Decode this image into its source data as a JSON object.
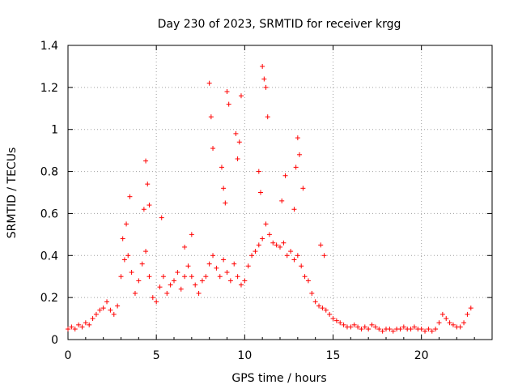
{
  "chart_data": {
    "type": "scatter",
    "title": "Day 230 of 2023, SRMTID for receiver krgg",
    "xlabel": "GPS time / hours",
    "ylabel": "SRMTID / TECUs",
    "xlim": [
      0,
      24
    ],
    "ylim": [
      0,
      1.4
    ],
    "x_ticks": [
      0,
      5,
      10,
      15,
      20
    ],
    "x_tick_labels": [
      "0",
      "5",
      "10",
      "15",
      "20"
    ],
    "y_ticks": [
      0,
      0.2,
      0.4,
      0.6,
      0.8,
      1.0,
      1.2,
      1.4
    ],
    "y_tick_labels": [
      "0",
      "0.2",
      "0.4",
      "0.6",
      "0.8",
      "1",
      "1.2",
      "1.4"
    ],
    "grid": true,
    "marker": "+",
    "series": [
      {
        "name": "SRMTID",
        "color": "#ff0000",
        "x": [
          0.0,
          0.2,
          0.4,
          0.6,
          0.8,
          1.0,
          1.2,
          1.4,
          1.6,
          1.8,
          2.0,
          2.2,
          2.4,
          2.6,
          2.8,
          3.0,
          3.2,
          3.4,
          3.6,
          3.8,
          4.0,
          4.2,
          4.4,
          4.6,
          4.8,
          5.0,
          5.2,
          5.4,
          5.6,
          5.8,
          6.0,
          6.2,
          6.4,
          6.6,
          6.8,
          7.0,
          7.2,
          7.4,
          7.6,
          7.8,
          8.0,
          8.2,
          8.4,
          8.6,
          8.8,
          9.0,
          9.2,
          9.4,
          9.6,
          9.8,
          10.0,
          10.2,
          10.4,
          10.6,
          10.8,
          11.0,
          11.2,
          11.4,
          11.6,
          11.8,
          12.0,
          12.2,
          12.4,
          12.6,
          12.8,
          13.0,
          13.2,
          13.4,
          13.6,
          13.8,
          14.0,
          14.2,
          14.4,
          14.6,
          14.8,
          15.0,
          15.2,
          15.4,
          15.6,
          15.8,
          16.0,
          16.2,
          16.4,
          16.6,
          16.8,
          17.0,
          17.2,
          17.4,
          17.6,
          17.8,
          18.0,
          18.2,
          18.4,
          18.6,
          18.8,
          19.0,
          19.2,
          19.4,
          19.6,
          19.8,
          20.0,
          20.2,
          20.4,
          20.6,
          20.8,
          21.0,
          21.2,
          21.4,
          21.6,
          21.8,
          22.0,
          22.2,
          22.4,
          22.6,
          22.8,
          3.1,
          3.3,
          3.5,
          4.3,
          4.4,
          4.5,
          4.6,
          5.3,
          6.6,
          7.0,
          8.0,
          8.1,
          8.2,
          8.7,
          8.8,
          8.9,
          9.0,
          9.1,
          9.5,
          9.6,
          9.7,
          9.8,
          10.8,
          10.9,
          11.0,
          11.1,
          11.2,
          11.3,
          12.1,
          12.3,
          12.8,
          12.9,
          13.0,
          13.1,
          13.3,
          14.3,
          14.5
        ],
        "y": [
          0.05,
          0.06,
          0.05,
          0.07,
          0.06,
          0.08,
          0.07,
          0.1,
          0.12,
          0.14,
          0.15,
          0.18,
          0.14,
          0.12,
          0.16,
          0.3,
          0.38,
          0.4,
          0.32,
          0.22,
          0.28,
          0.36,
          0.42,
          0.3,
          0.2,
          0.18,
          0.25,
          0.3,
          0.22,
          0.26,
          0.28,
          0.32,
          0.24,
          0.3,
          0.35,
          0.3,
          0.26,
          0.22,
          0.28,
          0.3,
          0.36,
          0.4,
          0.34,
          0.3,
          0.38,
          0.32,
          0.28,
          0.36,
          0.3,
          0.26,
          0.28,
          0.35,
          0.4,
          0.42,
          0.45,
          0.48,
          0.55,
          0.5,
          0.46,
          0.45,
          0.44,
          0.46,
          0.4,
          0.42,
          0.38,
          0.4,
          0.35,
          0.3,
          0.28,
          0.22,
          0.18,
          0.16,
          0.15,
          0.14,
          0.12,
          0.1,
          0.09,
          0.08,
          0.07,
          0.06,
          0.06,
          0.07,
          0.06,
          0.05,
          0.06,
          0.05,
          0.07,
          0.06,
          0.05,
          0.04,
          0.05,
          0.05,
          0.04,
          0.05,
          0.05,
          0.06,
          0.05,
          0.05,
          0.06,
          0.05,
          0.05,
          0.04,
          0.05,
          0.04,
          0.05,
          0.08,
          0.12,
          0.1,
          0.08,
          0.07,
          0.06,
          0.06,
          0.08,
          0.12,
          0.15,
          0.48,
          0.55,
          0.68,
          0.62,
          0.85,
          0.74,
          0.64,
          0.58,
          0.44,
          0.5,
          1.22,
          1.06,
          0.91,
          0.82,
          0.72,
          0.65,
          1.18,
          1.12,
          0.98,
          0.86,
          0.94,
          1.16,
          0.8,
          0.7,
          1.3,
          1.24,
          1.2,
          1.06,
          0.66,
          0.78,
          0.62,
          0.82,
          0.96,
          0.88,
          0.72,
          0.45,
          0.4
        ]
      }
    ]
  }
}
